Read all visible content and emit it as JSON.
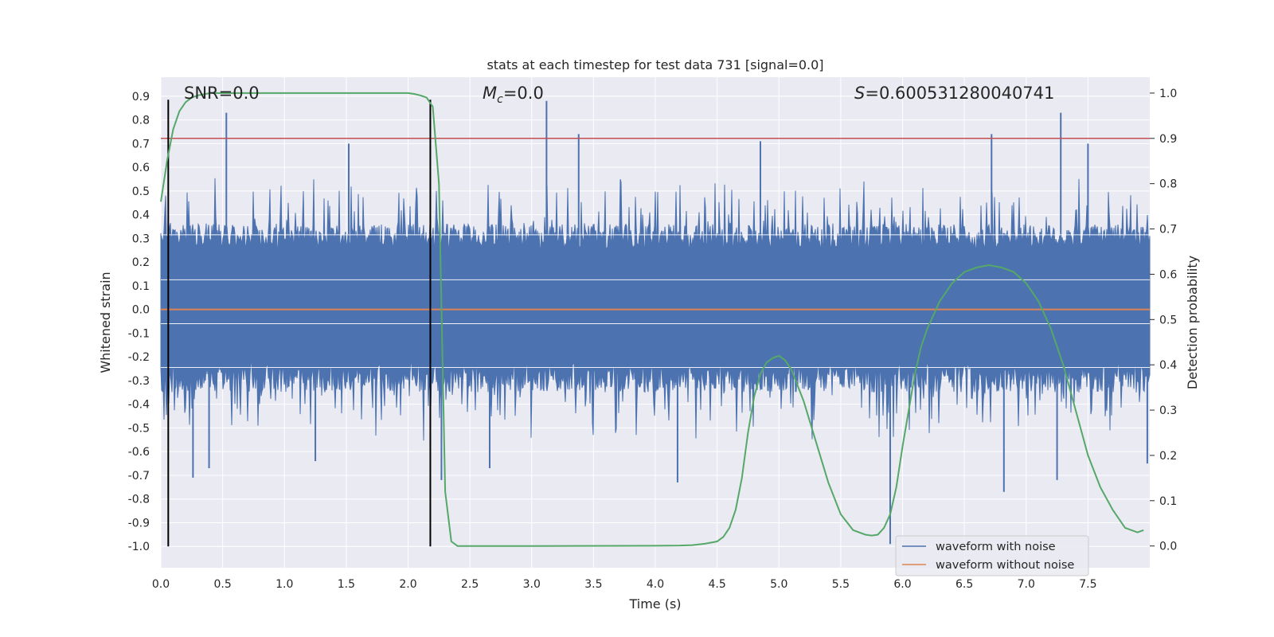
{
  "chart_data": {
    "type": "line",
    "title": "stats at each timestep for test data 731 [signal=0.0]",
    "xlabel": "Time (s)",
    "ylabel": "Whitened strain",
    "y2label": "Detection probability",
    "xlim": [
      0.0,
      8.0
    ],
    "ylim": [
      -1.09,
      0.98
    ],
    "y2lim": [
      -0.048,
      1.035
    ],
    "x_ticks": [
      "0.0",
      "0.5",
      "1.0",
      "1.5",
      "2.0",
      "2.5",
      "3.0",
      "3.5",
      "4.0",
      "4.5",
      "5.0",
      "5.5",
      "6.0",
      "6.5",
      "7.0",
      "7.5"
    ],
    "y_ticks": [
      "-1.0",
      "-0.9",
      "-0.8",
      "-0.7",
      "-0.6",
      "-0.5",
      "-0.4",
      "-0.3",
      "-0.2",
      "-0.1",
      "0.0",
      "0.1",
      "0.2",
      "0.3",
      "0.4",
      "0.5",
      "0.6",
      "0.7",
      "0.8",
      "0.9"
    ],
    "y2_ticks": [
      "0.0",
      "0.1",
      "0.2",
      "0.3",
      "0.4",
      "0.5",
      "0.6",
      "0.7",
      "0.8",
      "0.9",
      "1.0"
    ],
    "annotations": {
      "snr": "SNR=0.0",
      "mc_symbol": "M",
      "mc_sub": "c",
      "mc_value": "=0.0",
      "s_symbol": "S",
      "s_value": "=0.600531280040741"
    },
    "threshold": {
      "y2": 0.9,
      "color": "#c44e52"
    },
    "vertical_markers": [
      0.06,
      2.18
    ],
    "series": [
      {
        "name": "waveform with noise",
        "color": "#4c72b0",
        "axis": "left",
        "kind": "noise",
        "envelope_upper": 0.3,
        "envelope_lower": -0.25,
        "spikes": [
          {
            "x": 0.53,
            "y": 0.83
          },
          {
            "x": 1.52,
            "y": 0.7
          },
          {
            "x": 3.12,
            "y": 0.88
          },
          {
            "x": 3.38,
            "y": 0.74
          },
          {
            "x": 4.85,
            "y": 0.71
          },
          {
            "x": 6.72,
            "y": 0.74
          },
          {
            "x": 7.28,
            "y": 0.83
          },
          {
            "x": 7.5,
            "y": 0.7
          },
          {
            "x": 0.26,
            "y": -0.71
          },
          {
            "x": 0.39,
            "y": -0.67
          },
          {
            "x": 4.18,
            "y": -0.73
          },
          {
            "x": 5.9,
            "y": -0.99
          },
          {
            "x": 6.82,
            "y": -0.77
          },
          {
            "x": 7.25,
            "y": -0.72
          },
          {
            "x": 1.25,
            "y": -0.64
          },
          {
            "x": 2.27,
            "y": -0.72
          },
          {
            "x": 2.66,
            "y": -0.67
          },
          {
            "x": 7.98,
            "y": -0.65
          }
        ]
      },
      {
        "name": "waveform without noise",
        "color": "#dd8452",
        "axis": "left",
        "x": [
          0.0,
          8.0
        ],
        "y": [
          0.0,
          0.0
        ]
      },
      {
        "name": "detection probability",
        "color": "#55a868",
        "axis": "right",
        "x": [
          0.0,
          0.05,
          0.1,
          0.15,
          0.2,
          0.25,
          0.3,
          0.4,
          0.6,
          1.0,
          1.5,
          2.0,
          2.05,
          2.1,
          2.15,
          2.2,
          2.25,
          2.3,
          2.35,
          2.4,
          2.6,
          3.0,
          4.0,
          4.2,
          4.3,
          4.4,
          4.5,
          4.55,
          4.6,
          4.65,
          4.7,
          4.75,
          4.8,
          4.85,
          4.9,
          4.95,
          5.0,
          5.05,
          5.1,
          5.2,
          5.3,
          5.4,
          5.5,
          5.6,
          5.7,
          5.75,
          5.8,
          5.85,
          5.9,
          5.95,
          6.0,
          6.05,
          6.1,
          6.15,
          6.2,
          6.3,
          6.4,
          6.5,
          6.6,
          6.7,
          6.8,
          6.9,
          7.0,
          7.1,
          7.2,
          7.3,
          7.4,
          7.5,
          7.6,
          7.7,
          7.8,
          7.9,
          7.95
        ],
        "y": [
          0.76,
          0.85,
          0.92,
          0.96,
          0.98,
          0.99,
          0.995,
          1.0,
          1.0,
          1.0,
          1.0,
          1.0,
          0.998,
          0.995,
          0.99,
          0.97,
          0.8,
          0.12,
          0.01,
          0.0,
          0.0,
          0.0,
          0.0005,
          0.001,
          0.002,
          0.005,
          0.01,
          0.02,
          0.04,
          0.08,
          0.15,
          0.25,
          0.33,
          0.38,
          0.405,
          0.415,
          0.42,
          0.41,
          0.39,
          0.32,
          0.23,
          0.14,
          0.07,
          0.035,
          0.025,
          0.023,
          0.025,
          0.04,
          0.07,
          0.13,
          0.22,
          0.3,
          0.38,
          0.44,
          0.48,
          0.54,
          0.58,
          0.605,
          0.615,
          0.62,
          0.615,
          0.605,
          0.58,
          0.54,
          0.48,
          0.4,
          0.3,
          0.2,
          0.13,
          0.08,
          0.04,
          0.03,
          0.035
        ]
      }
    ],
    "legend": {
      "position": "lower-right",
      "entries": [
        {
          "label": "waveform with noise",
          "color": "#4c72b0"
        },
        {
          "label": "waveform without noise",
          "color": "#dd8452"
        }
      ]
    }
  }
}
